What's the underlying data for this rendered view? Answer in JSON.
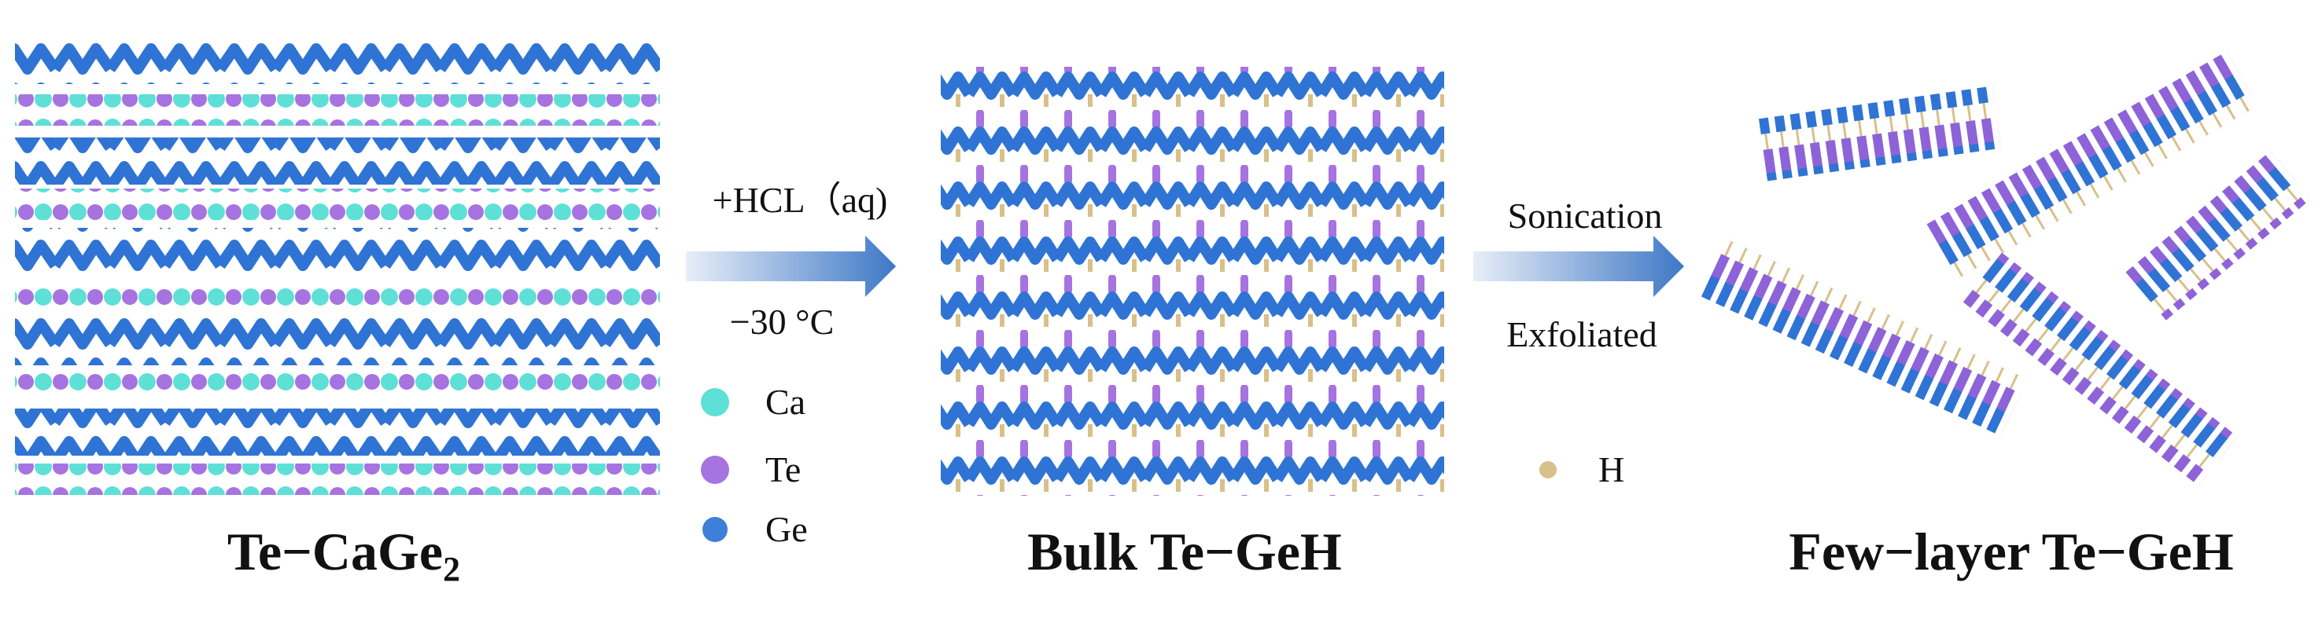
{
  "panels": [
    {
      "label": {
        "main": "Te−CaGe",
        "sub": "2"
      }
    },
    {
      "label": "Bulk Te−GeH"
    },
    {
      "label": "Few−layer Te−GeH"
    }
  ],
  "arrows": [
    {
      "above": "+HCL（aq)",
      "below": "−30 °C"
    },
    {
      "above": "Sonication",
      "below": "Exfoliated"
    }
  ],
  "legend": [
    {
      "label": "Ca",
      "color": "#5ee0d6"
    },
    {
      "label": "Te",
      "color": "#a673e0"
    },
    {
      "label": "Ge",
      "color": "#3d7fd9"
    },
    {
      "label": "H",
      "color": "#d8c08a"
    }
  ]
}
